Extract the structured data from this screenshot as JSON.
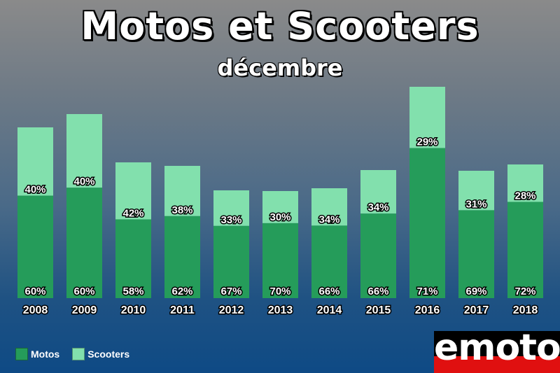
{
  "header": {
    "title": "Motos et Scooters",
    "subtitle": "décembre"
  },
  "colors": {
    "motos": "#259c5a",
    "scooters": "#82e0ad"
  },
  "legend": {
    "motos_label": "Motos",
    "scooters_label": "Scooters"
  },
  "logo": {
    "text": "emoto"
  },
  "chart_data": {
    "type": "bar",
    "stacked": true,
    "title": "Motos et Scooters",
    "subtitle": "décembre",
    "categories": [
      "2008",
      "2009",
      "2010",
      "2011",
      "2012",
      "2013",
      "2014",
      "2015",
      "2016",
      "2017",
      "2018"
    ],
    "totals": [
      244,
      263,
      194,
      189,
      154,
      153,
      157,
      183,
      302,
      182,
      191
    ],
    "series": [
      {
        "name": "Motos",
        "values_percent": [
          60,
          60,
          58,
          62,
          67,
          70,
          66,
          66,
          71,
          69,
          72
        ],
        "labels": [
          "60%",
          "60%",
          "58%",
          "62%",
          "67%",
          "70%",
          "66%",
          "66%",
          "71%",
          "69%",
          "72%"
        ]
      },
      {
        "name": "Scooters",
        "values_percent": [
          40,
          40,
          42,
          38,
          33,
          30,
          34,
          34,
          29,
          31,
          28
        ],
        "labels": [
          "40%",
          "40%",
          "42%",
          "38%",
          "33%",
          "30%",
          "34%",
          "34%",
          "29%",
          "31%",
          "28%"
        ]
      }
    ],
    "legend_position": "bottom-left",
    "grid": false
  }
}
